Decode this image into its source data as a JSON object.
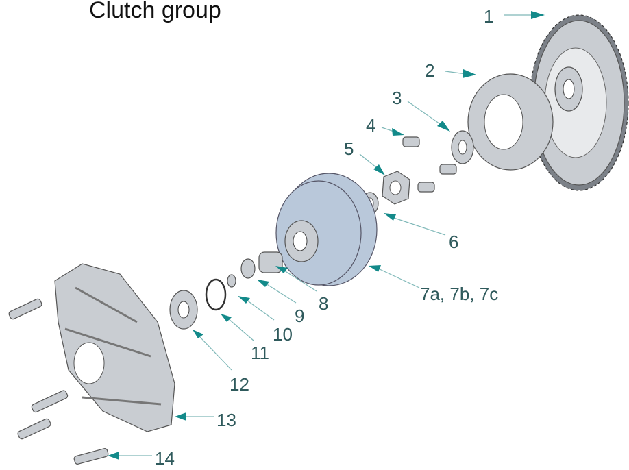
{
  "title": "Clutch group",
  "labels": [
    "1",
    "2",
    "3",
    "4",
    "5",
    "6",
    "7a, 7b, 7c",
    "8",
    "9",
    "10",
    "11",
    "12",
    "13",
    "14"
  ]
}
